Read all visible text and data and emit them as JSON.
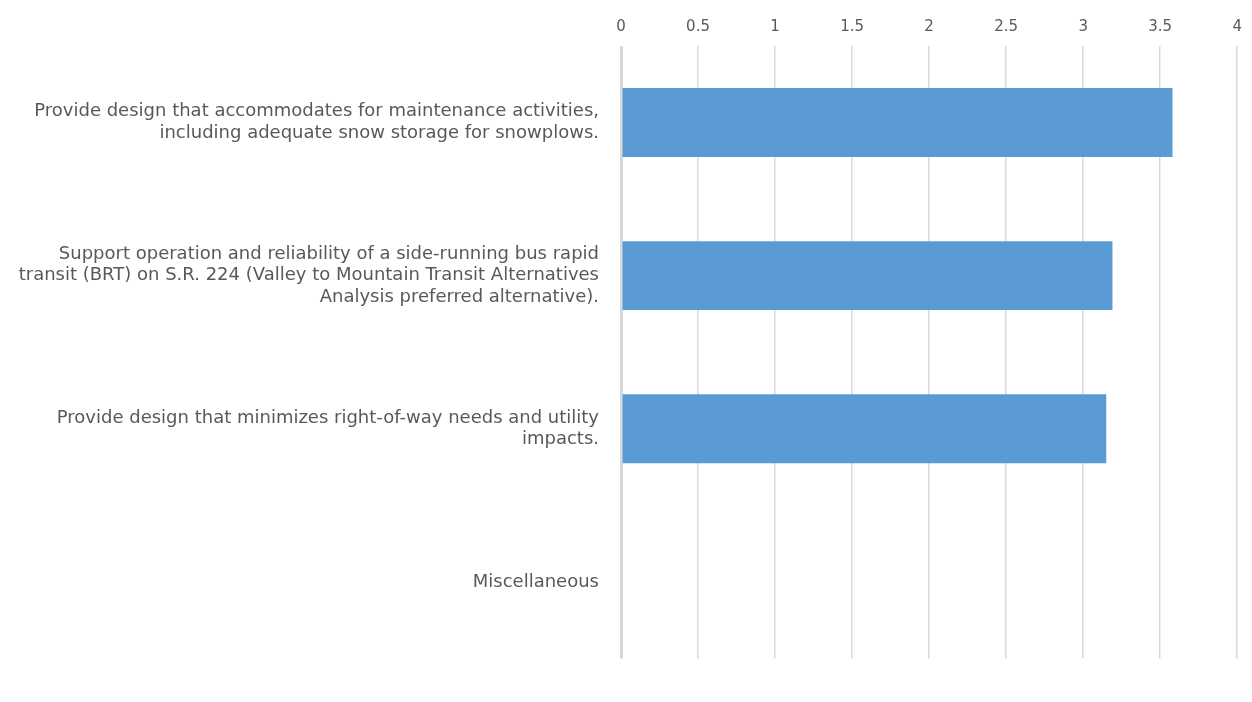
{
  "chart_data": {
    "type": "bar",
    "orientation": "horizontal",
    "categories": [
      "Provide design that accommodates for maintenance activities, including adequate snow storage for snowplows.",
      "Support operation and reliability of a side-running bus rapid transit (BRT) on S.R. 224 (Valley to Mountain Transit Alternatives Analysis preferred alternative).",
      "Provide design that minimizes right-of-way needs and utility impacts.",
      "Miscellaneous"
    ],
    "values": [
      3.58,
      3.19,
      3.15,
      0
    ],
    "color": "#5b9bd5",
    "xlim": [
      0,
      4
    ],
    "xticks": [
      0,
      0.5,
      1,
      1.5,
      2,
      2.5,
      3,
      3.5,
      4
    ],
    "grid": "x",
    "legend": false
  }
}
